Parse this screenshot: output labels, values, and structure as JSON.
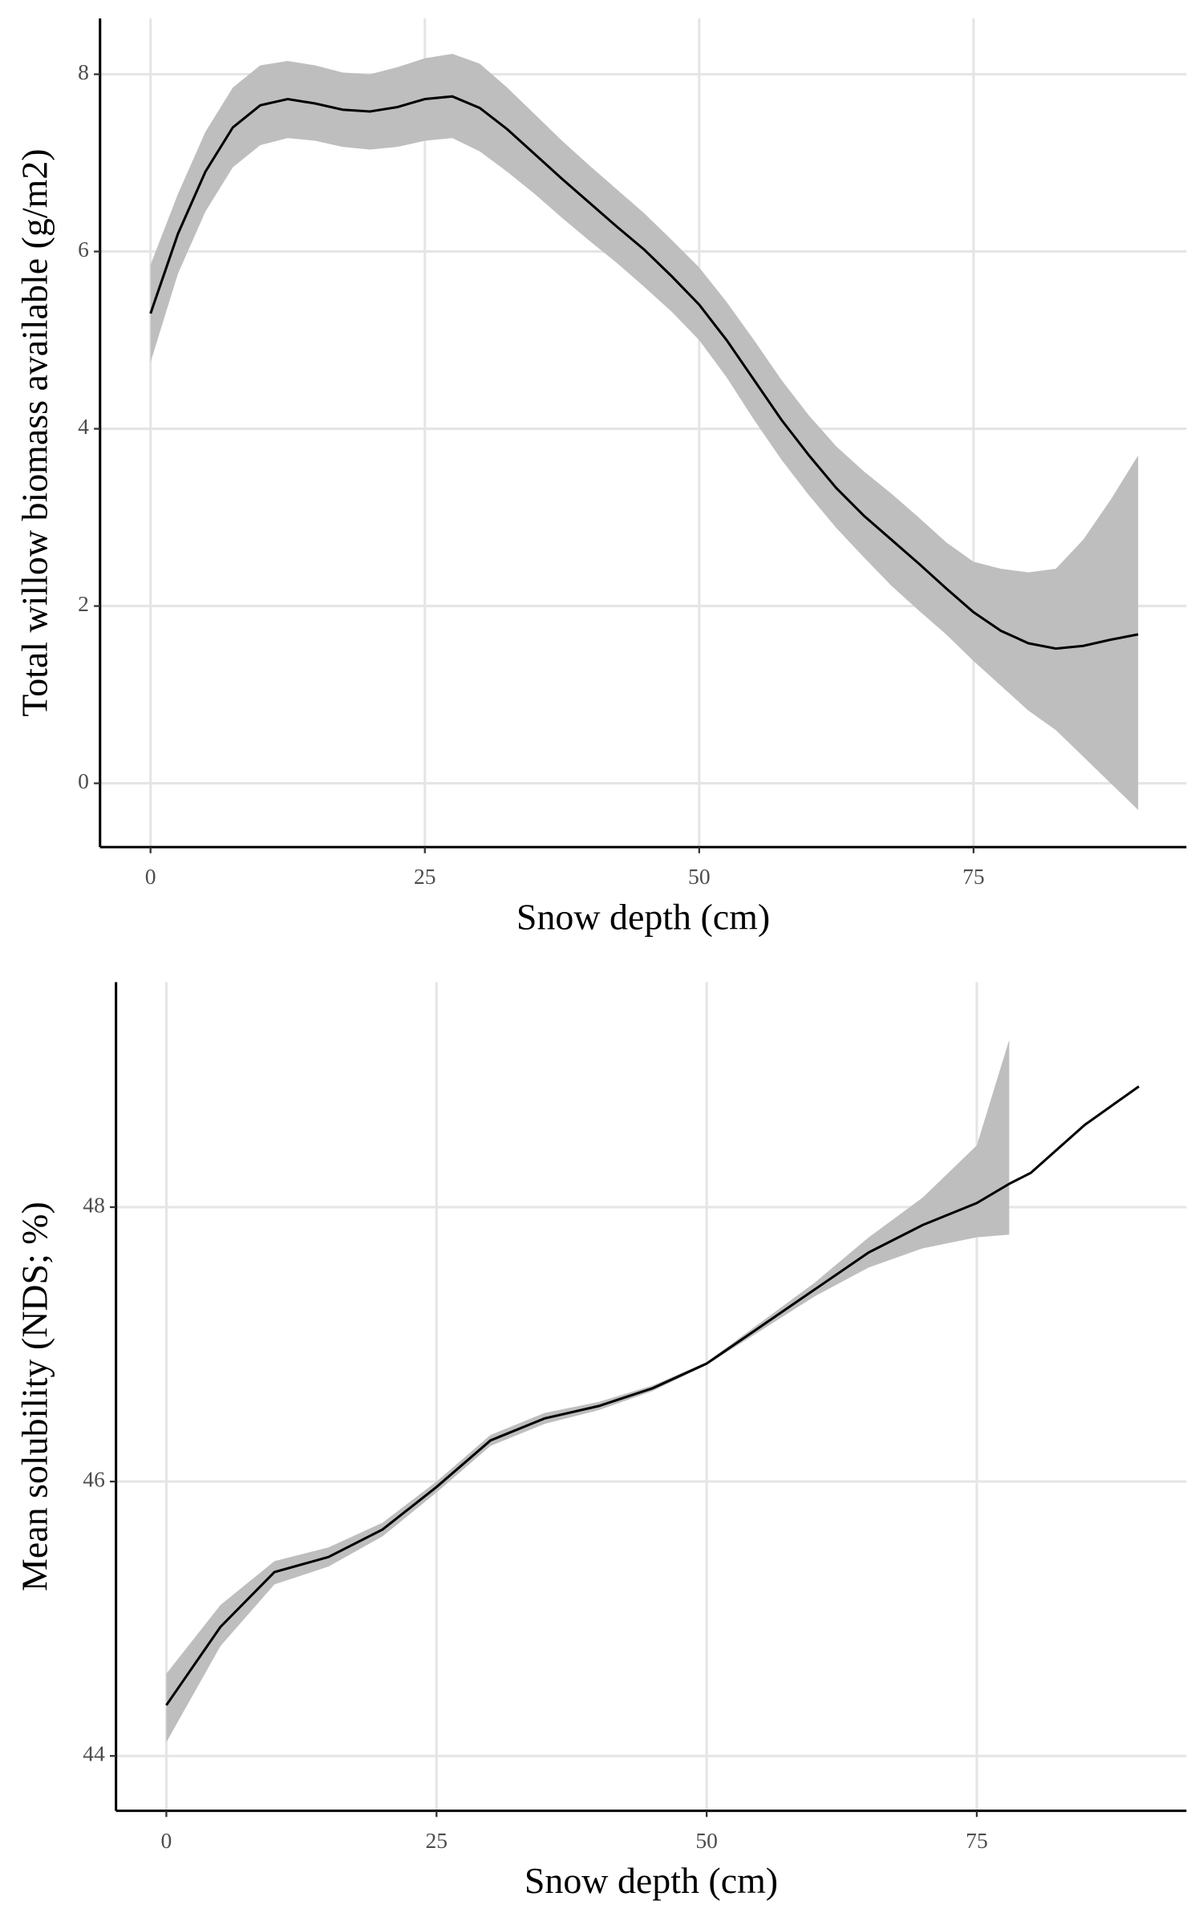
{
  "chart_data": [
    {
      "type": "line",
      "x_label": "Snow depth (cm)",
      "y_label": "Total willow biomass available (g/m2)",
      "x": [
        0,
        2.5,
        5,
        7.5,
        10,
        12.5,
        15,
        17.5,
        20,
        22.5,
        25,
        27.5,
        30,
        32.5,
        35,
        37.5,
        40,
        42.5,
        45,
        47.5,
        50,
        52.5,
        55,
        57.5,
        60,
        62.5,
        65,
        67.5,
        70,
        72.5,
        75,
        77.5,
        80,
        82.5,
        85,
        87.5,
        90
      ],
      "values": [
        5.3,
        6.2,
        6.9,
        7.4,
        7.65,
        7.72,
        7.67,
        7.6,
        7.58,
        7.63,
        7.72,
        7.75,
        7.62,
        7.38,
        7.1,
        6.82,
        6.55,
        6.28,
        6.02,
        5.72,
        5.4,
        5.0,
        4.55,
        4.1,
        3.7,
        3.33,
        3.02,
        2.75,
        2.48,
        2.2,
        1.93,
        1.72,
        1.58,
        1.52,
        1.55,
        1.62,
        1.68
      ],
      "upper": [
        5.85,
        6.65,
        7.35,
        7.85,
        8.1,
        8.15,
        8.1,
        8.02,
        8.0,
        8.08,
        8.18,
        8.23,
        8.12,
        7.85,
        7.55,
        7.25,
        6.97,
        6.7,
        6.43,
        6.13,
        5.82,
        5.43,
        5.0,
        4.55,
        4.15,
        3.8,
        3.52,
        3.27,
        3.0,
        2.72,
        2.5,
        2.42,
        2.38,
        2.42,
        2.75,
        3.2,
        3.7
      ],
      "lower": [
        4.75,
        5.75,
        6.45,
        6.95,
        7.2,
        7.28,
        7.25,
        7.18,
        7.15,
        7.18,
        7.25,
        7.28,
        7.13,
        6.9,
        6.65,
        6.38,
        6.12,
        5.87,
        5.6,
        5.32,
        5.0,
        4.58,
        4.1,
        3.65,
        3.25,
        2.88,
        2.55,
        2.23,
        1.95,
        1.68,
        1.38,
        1.1,
        0.82,
        0.6,
        0.3,
        0.0,
        -0.3
      ],
      "color": "#000000",
      "band_color": "#bebebe",
      "xlim": [
        -4.6,
        94.4
      ],
      "ylim": [
        -0.72,
        8.63
      ],
      "xticks": [
        0,
        25,
        50,
        75
      ],
      "yticks": [
        0,
        2,
        4,
        6,
        8
      ],
      "grid": true
    },
    {
      "type": "line",
      "x_label": "Snow depth (cm)",
      "y_label": "Mean solubility (NDS; %)",
      "x": [
        0,
        5,
        10,
        15,
        20,
        25,
        30,
        35,
        40,
        45,
        50,
        55,
        60,
        65,
        70,
        75,
        78,
        80,
        85,
        90
      ],
      "values": [
        44.37,
        44.94,
        45.34,
        45.45,
        45.65,
        45.96,
        46.3,
        46.46,
        46.55,
        46.68,
        46.86,
        47.13,
        47.4,
        47.67,
        47.87,
        48.03,
        48.17,
        48.25,
        48.6,
        48.88
      ],
      "upper": [
        44.6,
        45.1,
        45.42,
        45.52,
        45.7,
        46.0,
        46.34,
        46.5,
        46.58,
        46.7,
        46.87,
        47.16,
        47.45,
        47.78,
        48.07,
        48.45,
        49.22,
        null,
        null,
        null
      ],
      "lower": [
        44.1,
        44.8,
        45.25,
        45.38,
        45.6,
        45.92,
        46.26,
        46.42,
        46.52,
        46.66,
        46.85,
        47.1,
        47.35,
        47.56,
        47.7,
        47.78,
        47.8,
        null,
        null,
        null
      ],
      "color": "#000000",
      "band_color": "#bebebe",
      "xlim": [
        -4.66,
        94.4
      ],
      "ylim": [
        43.6,
        49.64
      ],
      "xticks": [
        0,
        25,
        50,
        75
      ],
      "yticks": [
        44,
        46,
        48
      ],
      "grid": true
    }
  ]
}
